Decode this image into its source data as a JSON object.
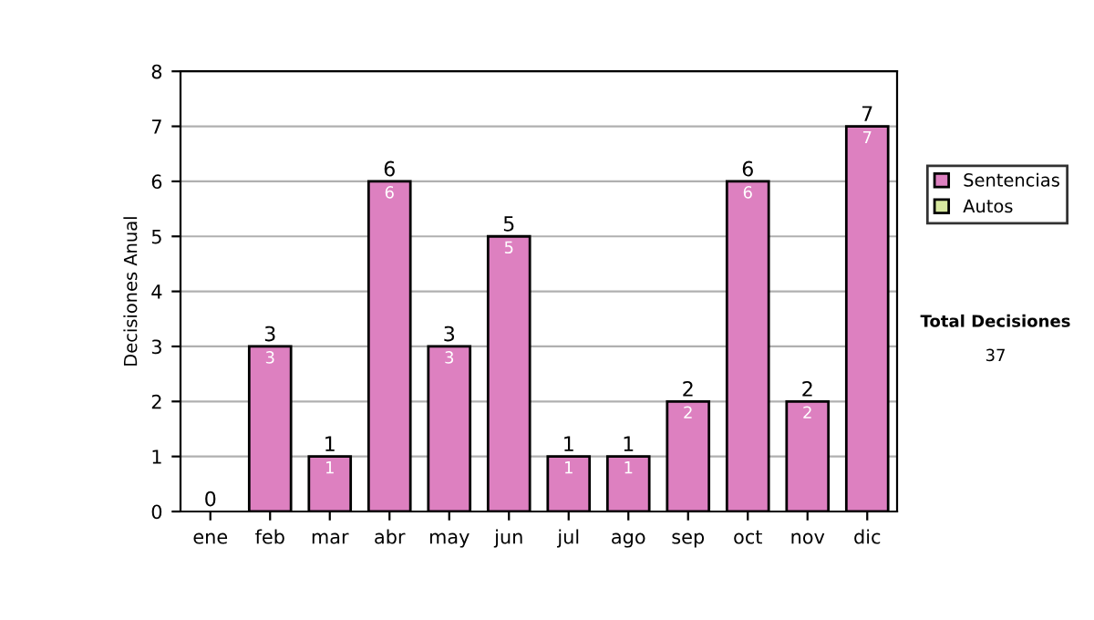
{
  "chart_data": {
    "type": "bar",
    "stacked": true,
    "ylabel": "Decisiones Anual",
    "categories": [
      "ene",
      "feb",
      "mar",
      "abr",
      "may",
      "jun",
      "jul",
      "ago",
      "sep",
      "oct",
      "nov",
      "dic"
    ],
    "series": [
      {
        "name": "Sentencias",
        "color": "#dd80c0",
        "values": [
          0,
          3,
          1,
          6,
          3,
          5,
          1,
          1,
          2,
          6,
          2,
          7
        ],
        "value_labels": [
          null,
          "3",
          "1",
          "6",
          "3",
          "5",
          "1",
          "1",
          "2",
          "6",
          "2",
          "7"
        ]
      },
      {
        "name": "Autos",
        "color": "#d8e8a0",
        "values": [
          0,
          0,
          0,
          0,
          0,
          0,
          0,
          0,
          0,
          0,
          0,
          0
        ]
      }
    ],
    "totals": [
      "0",
      "3",
      "1",
      "6",
      "3",
      "5",
      "1",
      "1",
      "2",
      "6",
      "2",
      "7"
    ],
    "ylim": [
      0,
      8
    ],
    "yticks": [
      0,
      1,
      2,
      3,
      4,
      5,
      6,
      7,
      8
    ],
    "grid": "y",
    "legend": "right",
    "annotations": [
      "Total Decisiones",
      "37"
    ]
  }
}
